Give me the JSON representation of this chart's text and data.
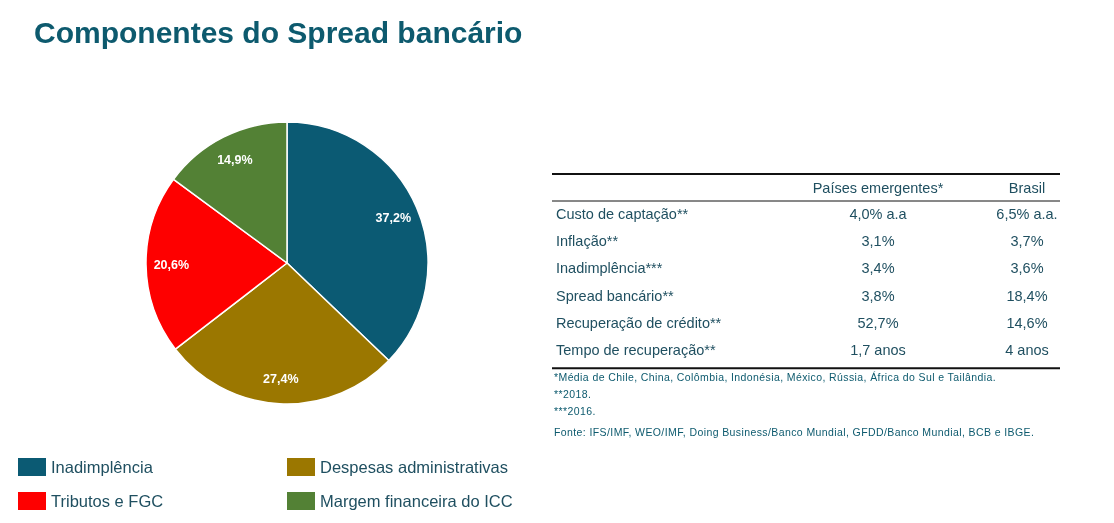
{
  "chart_data": [
    {
      "type": "pie",
      "title": "Componentes do Spread  bancário",
      "categories": [
        "Inadimplência",
        "Despesas administrativas",
        "Tributos e FGC",
        "Margem financeira do ICC"
      ],
      "values": [
        37.2,
        27.4,
        20.6,
        14.9
      ],
      "value_labels": [
        "37,2%",
        "27,4%",
        "20,6%",
        "14,9%"
      ],
      "colors": [
        "#0b5a73",
        "#9b7700",
        "#fe0000",
        "#538135"
      ],
      "legend": "bottom"
    },
    {
      "type": "other",
      "categories": [
        "Países emergentes*",
        "Brasil"
      ],
      "y_categories": [
        "Custo de captação**",
        "Inflação**",
        "Inadimplência***",
        "Spread  bancário**",
        "Recuperação de crédito**",
        "Tempo de recuperação**"
      ],
      "cell_labels": [
        [
          "4,0% a.a",
          "6,5% a.a."
        ],
        [
          "3,1%",
          "3,7%"
        ],
        [
          "3,4%",
          "3,6%"
        ],
        [
          "3,8%",
          "18,4%"
        ],
        [
          "52,7%",
          "14,6%"
        ],
        [
          "1,7 anos",
          "4 anos"
        ]
      ],
      "annotations": [
        "*Média de Chile, China, Colômbia, Indonésia, México, Rússia, África do Sul e Tailândia.",
        "**2018.",
        "***2016.",
        "Fonte: IFS/IMF, WEO/IMF, Doing Business/Banco Mundial, GFDD/Banco Mundial, BCB e IBGE."
      ]
    }
  ]
}
